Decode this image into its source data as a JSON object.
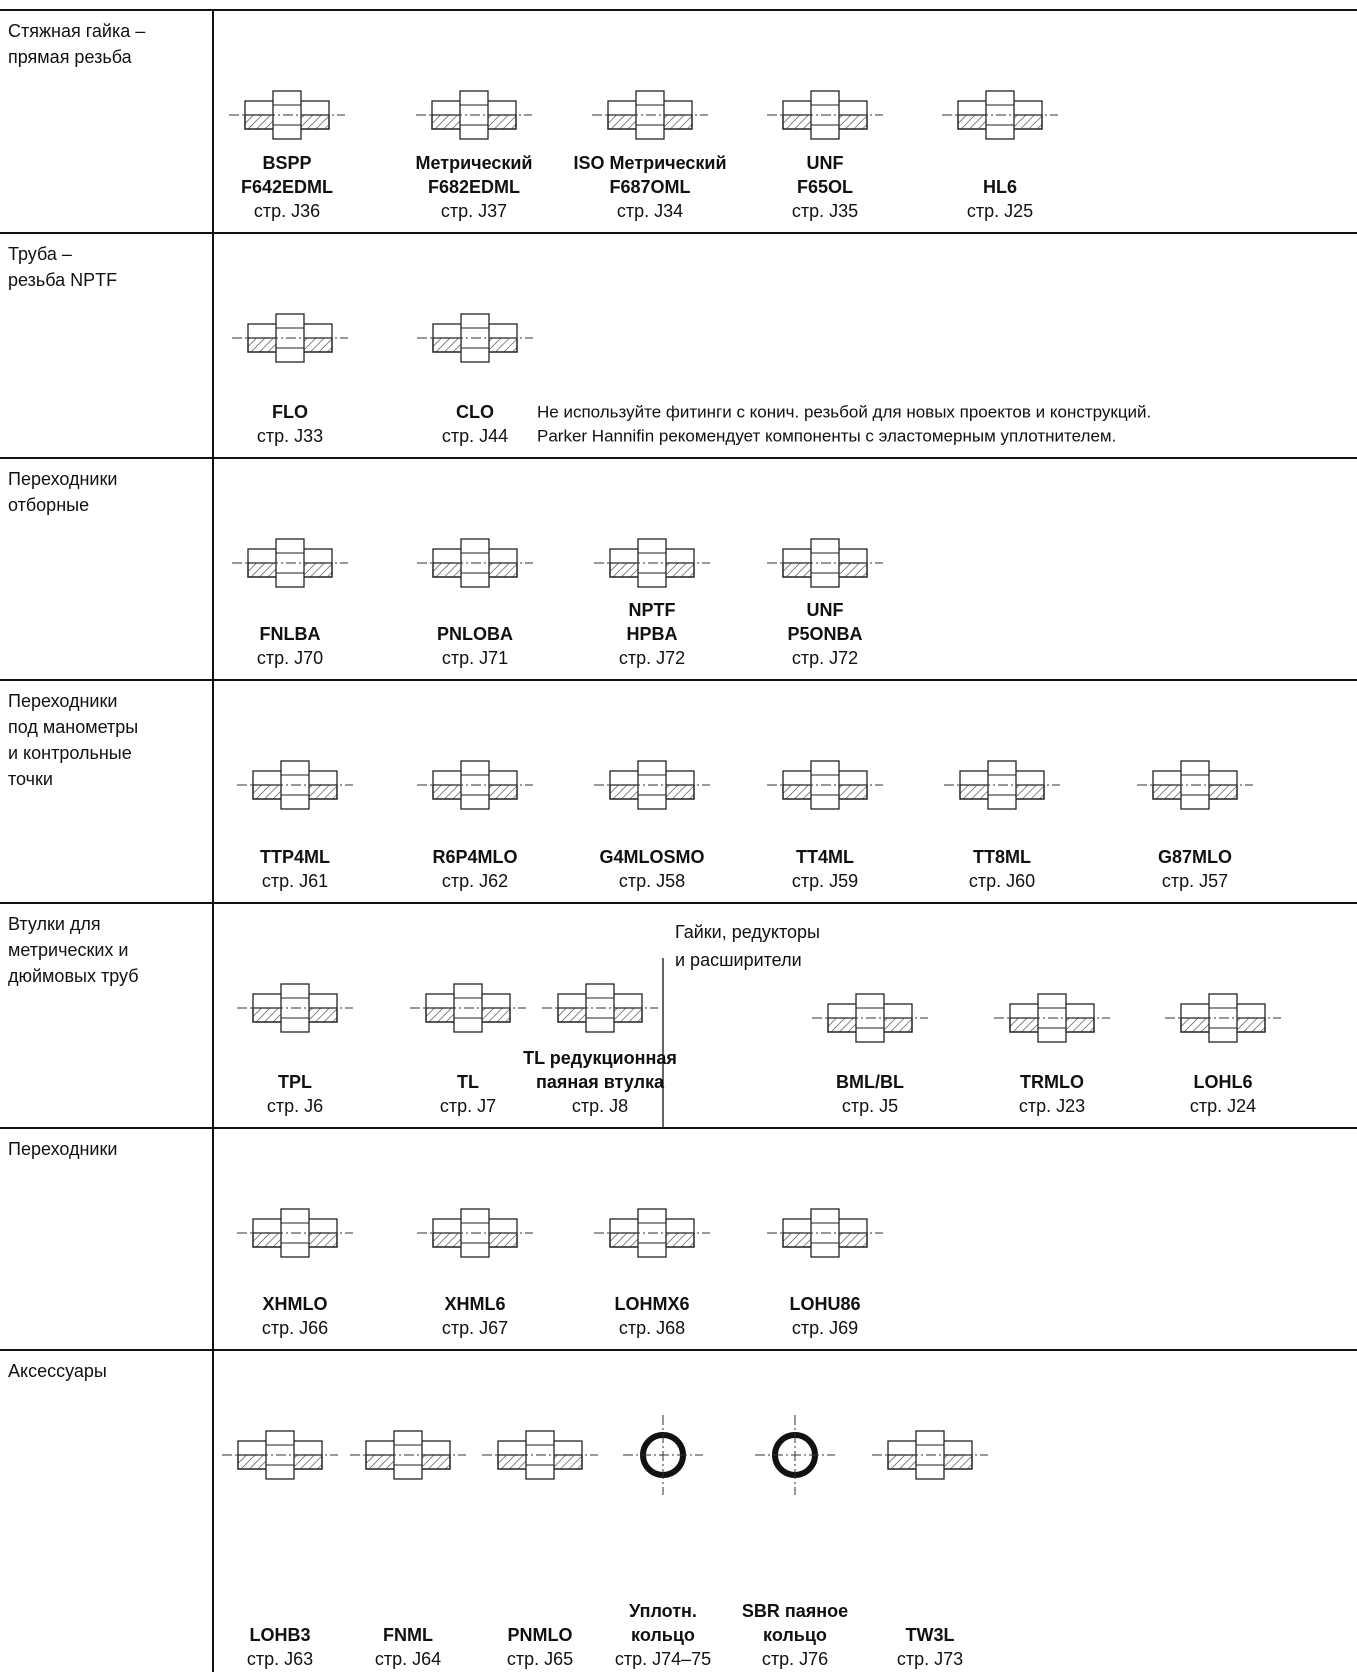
{
  "sections": [
    {
      "title": [
        "Стяжная гайка –",
        "прямая резьба"
      ],
      "items": [
        {
          "name": [
            "BSPP",
            "F642EDML"
          ],
          "page": "стр. J36"
        },
        {
          "name": [
            "Метрический",
            "F682EDML"
          ],
          "page": "стр. J37"
        },
        {
          "name": [
            "ISO Метрический",
            "F687OML"
          ],
          "page": "стр. J34"
        },
        {
          "name": [
            "UNF",
            "F65OL"
          ],
          "page": "стр. J35"
        },
        {
          "name": [
            "HL6"
          ],
          "page": "стр. J25"
        }
      ]
    },
    {
      "title": [
        "Труба –",
        "резьба NPTF"
      ],
      "items": [
        {
          "name": [
            "FLO"
          ],
          "page": "стр. J33"
        },
        {
          "name": [
            "CLO"
          ],
          "page": "стр. J44"
        }
      ],
      "note": [
        "Не используйте фитинги с конич. резьбой для новых проектов и конструкций.",
        "Parker Hannifin рекомендует компоненты с эластомерным уплотнителем."
      ]
    },
    {
      "title": [
        "Переходники",
        "отборные"
      ],
      "items": [
        {
          "name": [
            "FNLBA"
          ],
          "page": "стр. J70"
        },
        {
          "name": [
            "PNLOBA"
          ],
          "page": "стр. J71"
        },
        {
          "name": [
            "NPTF",
            "HPBA"
          ],
          "page": "стр. J72"
        },
        {
          "name": [
            "UNF",
            "P5ONBA"
          ],
          "page": "стр. J72"
        }
      ]
    },
    {
      "title": [
        "Переходники",
        "под манометры",
        "и контрольные",
        "точки"
      ],
      "items": [
        {
          "name": [
            "TTP4ML"
          ],
          "page": "стр. J61"
        },
        {
          "name": [
            "R6P4MLO"
          ],
          "page": "стр. J62"
        },
        {
          "name": [
            "G4MLOSMO"
          ],
          "page": "стр. J58"
        },
        {
          "name": [
            "TT4ML"
          ],
          "page": "стр. J59"
        },
        {
          "name": [
            "TT8ML"
          ],
          "page": "стр. J60"
        },
        {
          "name": [
            "G87MLO"
          ],
          "page": "стр. J57"
        }
      ]
    },
    {
      "title": [
        "Втулки для",
        "метрических и",
        "дюймовых труб"
      ],
      "items": [
        {
          "name": [
            "TPL"
          ],
          "page": "стр. J6"
        },
        {
          "name": [
            "TL"
          ],
          "page": "стр. J7"
        },
        {
          "name": [
            "TL редукционная",
            "паяная втулка"
          ],
          "page": "стр. J8"
        }
      ],
      "subsection": {
        "title": [
          "Гайки, редукторы",
          "и расширители"
        ],
        "items": [
          {
            "name": [
              "BML/BL"
            ],
            "page": "стр. J5"
          },
          {
            "name": [
              "TRMLO"
            ],
            "page": "стр. J23"
          },
          {
            "name": [
              "LOHL6"
            ],
            "page": "стр. J24"
          }
        ]
      }
    },
    {
      "title": [
        "Переходники"
      ],
      "items": [
        {
          "name": [
            "XHMLO"
          ],
          "page": "стр. J66"
        },
        {
          "name": [
            "XHML6"
          ],
          "page": "стр. J67"
        },
        {
          "name": [
            "LOHMX6"
          ],
          "page": "стр. J68"
        },
        {
          "name": [
            "LOHU86"
          ],
          "page": "стр. J69"
        }
      ]
    },
    {
      "title": [
        "Аксессуары"
      ],
      "items": [
        {
          "name": [
            "LOHB3"
          ],
          "page": "стр. J63"
        },
        {
          "name": [
            "FNML"
          ],
          "page": "стр. J64"
        },
        {
          "name": [
            "PNMLO"
          ],
          "page": "стр. J65"
        },
        {
          "name": [
            "Уплотн.",
            "кольцо"
          ],
          "page": "стр. J74–75"
        },
        {
          "name": [
            "SBR паяное",
            "кольцо"
          ],
          "page": "стр. J76"
        },
        {
          "name": [
            "TW3L"
          ],
          "page": "стр. J73"
        }
      ]
    }
  ]
}
